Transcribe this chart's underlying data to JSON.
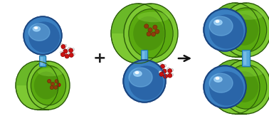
{
  "bg_color": "#ffffff",
  "blue_sphere": "#3a7fc1",
  "blue_sphere_dark": "#1a4580",
  "blue_sphere_mid": "#2a65a8",
  "blue_sphere_light": "#7abfef",
  "blue_sphere_highlight": "#aaddff",
  "green_cup": "#7dc832",
  "green_cup_inner": "#5aaa10",
  "green_cup_side": "#6ab828",
  "green_cup_dark": "#3a7a08",
  "green_cup_rim": "#2a5a08",
  "green_cup_sheen": "#9ee855",
  "blue_connector": "#55aadd",
  "blue_connector_light": "#99ccee",
  "blue_connector_dark": "#2277aa",
  "water_red": "#cc1111",
  "water_white": "#eeeeee",
  "water_gray": "#aaaaaa",
  "arrow_color": "#111111",
  "plus_color": "#222222",
  "figure_width": 3.78,
  "figure_height": 1.7,
  "dpi": 100
}
